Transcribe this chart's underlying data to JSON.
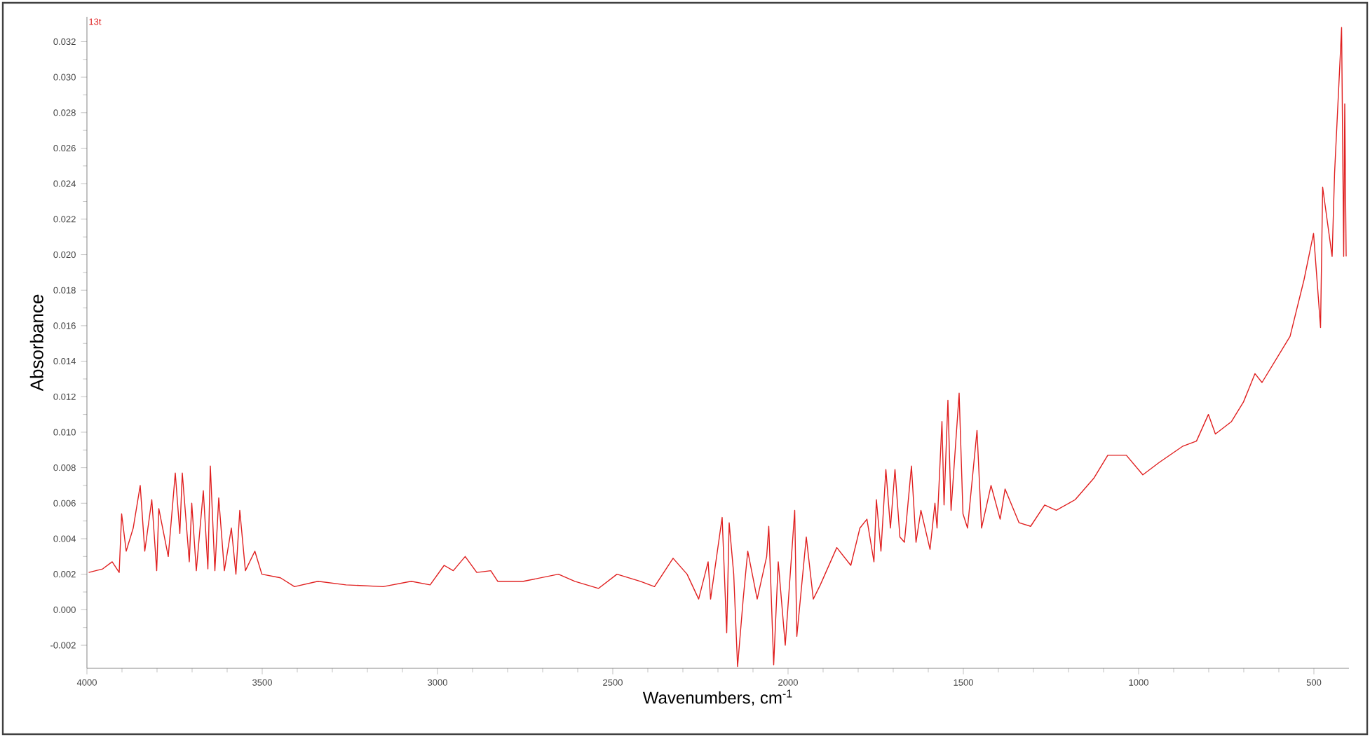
{
  "chart_data": {
    "type": "line",
    "xlabel": "Wavenumbers, cm$^{-1}$",
    "ylabel": "Absorbance",
    "annotations": [
      "13t"
    ],
    "xlim": [
      4000,
      400
    ],
    "ylim": [
      -0.0033,
      0.0334
    ],
    "xticks": [
      4000,
      3500,
      3000,
      2500,
      2000,
      1500,
      1000,
      500
    ],
    "yticks": [
      {
        "value": -0.002,
        "label": "-0.002"
      },
      {
        "value": 0,
        "label": "0.000"
      },
      {
        "value": 0.002,
        "label": "0.002"
      },
      {
        "value": 0.004,
        "label": "0.004"
      },
      {
        "value": 0.006,
        "label": "0.006"
      },
      {
        "value": 0.008,
        "label": "0.008"
      },
      {
        "value": 0.01,
        "label": "0.010"
      },
      {
        "value": 0.012,
        "label": "0.012"
      },
      {
        "value": 0.014,
        "label": "0.014"
      },
      {
        "value": 0.016,
        "label": "0.016"
      },
      {
        "value": 0.018,
        "label": "0.018"
      },
      {
        "value": 0.02,
        "label": "0.020"
      },
      {
        "value": 0.022,
        "label": "0.022"
      },
      {
        "value": 0.024,
        "label": "0.024"
      },
      {
        "value": 0.026,
        "label": "0.026"
      },
      {
        "value": 0.028,
        "label": "0.028"
      },
      {
        "value": 0.03,
        "label": "0.030"
      },
      {
        "value": 0.032,
        "label": "0.032"
      }
    ],
    "series": [
      {
        "color": "#e02020",
        "x": [
          3995,
          3955,
          3928,
          3908,
          3901,
          3888,
          3868,
          3848,
          3835,
          3815,
          3801,
          3795,
          3768,
          3748,
          3735,
          3728,
          3708,
          3701,
          3688,
          3668,
          3655,
          3648,
          3635,
          3624,
          3608,
          3588,
          3575,
          3564,
          3548,
          3521,
          3501,
          3448,
          3408,
          3341,
          3261,
          3155,
          3075,
          3021,
          2981,
          2955,
          2921,
          2888,
          2848,
          2828,
          2755,
          2655,
          2608,
          2541,
          2488,
          2421,
          2381,
          2328,
          2288,
          2255,
          2228,
          2221,
          2188,
          2175,
          2168,
          2155,
          2144,
          2128,
          2115,
          2088,
          2061,
          2055,
          2041,
          2028,
          2008,
          1981,
          1975,
          1948,
          1928,
          1908,
          1861,
          1821,
          1795,
          1775,
          1755,
          1748,
          1735,
          1721,
          1708,
          1695,
          1681,
          1668,
          1648,
          1635,
          1621,
          1595,
          1581,
          1575,
          1561,
          1555,
          1544,
          1535,
          1512,
          1501,
          1488,
          1461,
          1448,
          1421,
          1395,
          1381,
          1341,
          1308,
          1268,
          1235,
          1181,
          1128,
          1088,
          1035,
          988,
          941,
          875,
          835,
          801,
          781,
          735,
          701,
          668,
          648,
          568,
          528,
          501,
          481,
          475,
          448,
          441,
          428,
          421,
          415,
          412,
          408
        ],
        "values": [
          0.0021,
          0.0023,
          0.0027,
          0.0021,
          0.0054,
          0.0033,
          0.0046,
          0.007,
          0.0033,
          0.0062,
          0.0022,
          0.0057,
          0.003,
          0.0077,
          0.0043,
          0.0077,
          0.0027,
          0.006,
          0.0022,
          0.0067,
          0.0023,
          0.0081,
          0.0022,
          0.0063,
          0.0022,
          0.0046,
          0.002,
          0.0056,
          0.0022,
          0.0033,
          0.002,
          0.0018,
          0.0013,
          0.0016,
          0.0014,
          0.0013,
          0.0016,
          0.0014,
          0.0025,
          0.0022,
          0.003,
          0.0021,
          0.0022,
          0.0016,
          0.0016,
          0.002,
          0.0016,
          0.0012,
          0.002,
          0.0016,
          0.0013,
          0.0029,
          0.002,
          0.0006,
          0.0027,
          0.0006,
          0.0052,
          -0.0013,
          0.0049,
          0.002,
          -0.0032,
          0.0006,
          0.0033,
          0.0006,
          0.003,
          0.0047,
          -0.0031,
          0.0027,
          -0.002,
          0.0056,
          -0.0015,
          0.0041,
          0.0006,
          0.0014,
          0.0035,
          0.0025,
          0.0046,
          0.0051,
          0.0027,
          0.0062,
          0.0033,
          0.0079,
          0.0046,
          0.0079,
          0.0041,
          0.0038,
          0.0081,
          0.0038,
          0.0056,
          0.0034,
          0.006,
          0.0046,
          0.0106,
          0.0059,
          0.0118,
          0.0056,
          0.0122,
          0.0054,
          0.0046,
          0.0101,
          0.0046,
          0.007,
          0.0051,
          0.0068,
          0.0049,
          0.0047,
          0.0059,
          0.0056,
          0.0062,
          0.0074,
          0.0087,
          0.0087,
          0.0076,
          0.0083,
          0.0092,
          0.0095,
          0.011,
          0.0099,
          0.0106,
          0.0117,
          0.0133,
          0.0128,
          0.0154,
          0.0186,
          0.0212,
          0.0159,
          0.0238,
          0.0199,
          0.0246,
          0.0299,
          0.0328,
          0.0199,
          0.0285,
          0.0199
        ]
      }
    ]
  }
}
